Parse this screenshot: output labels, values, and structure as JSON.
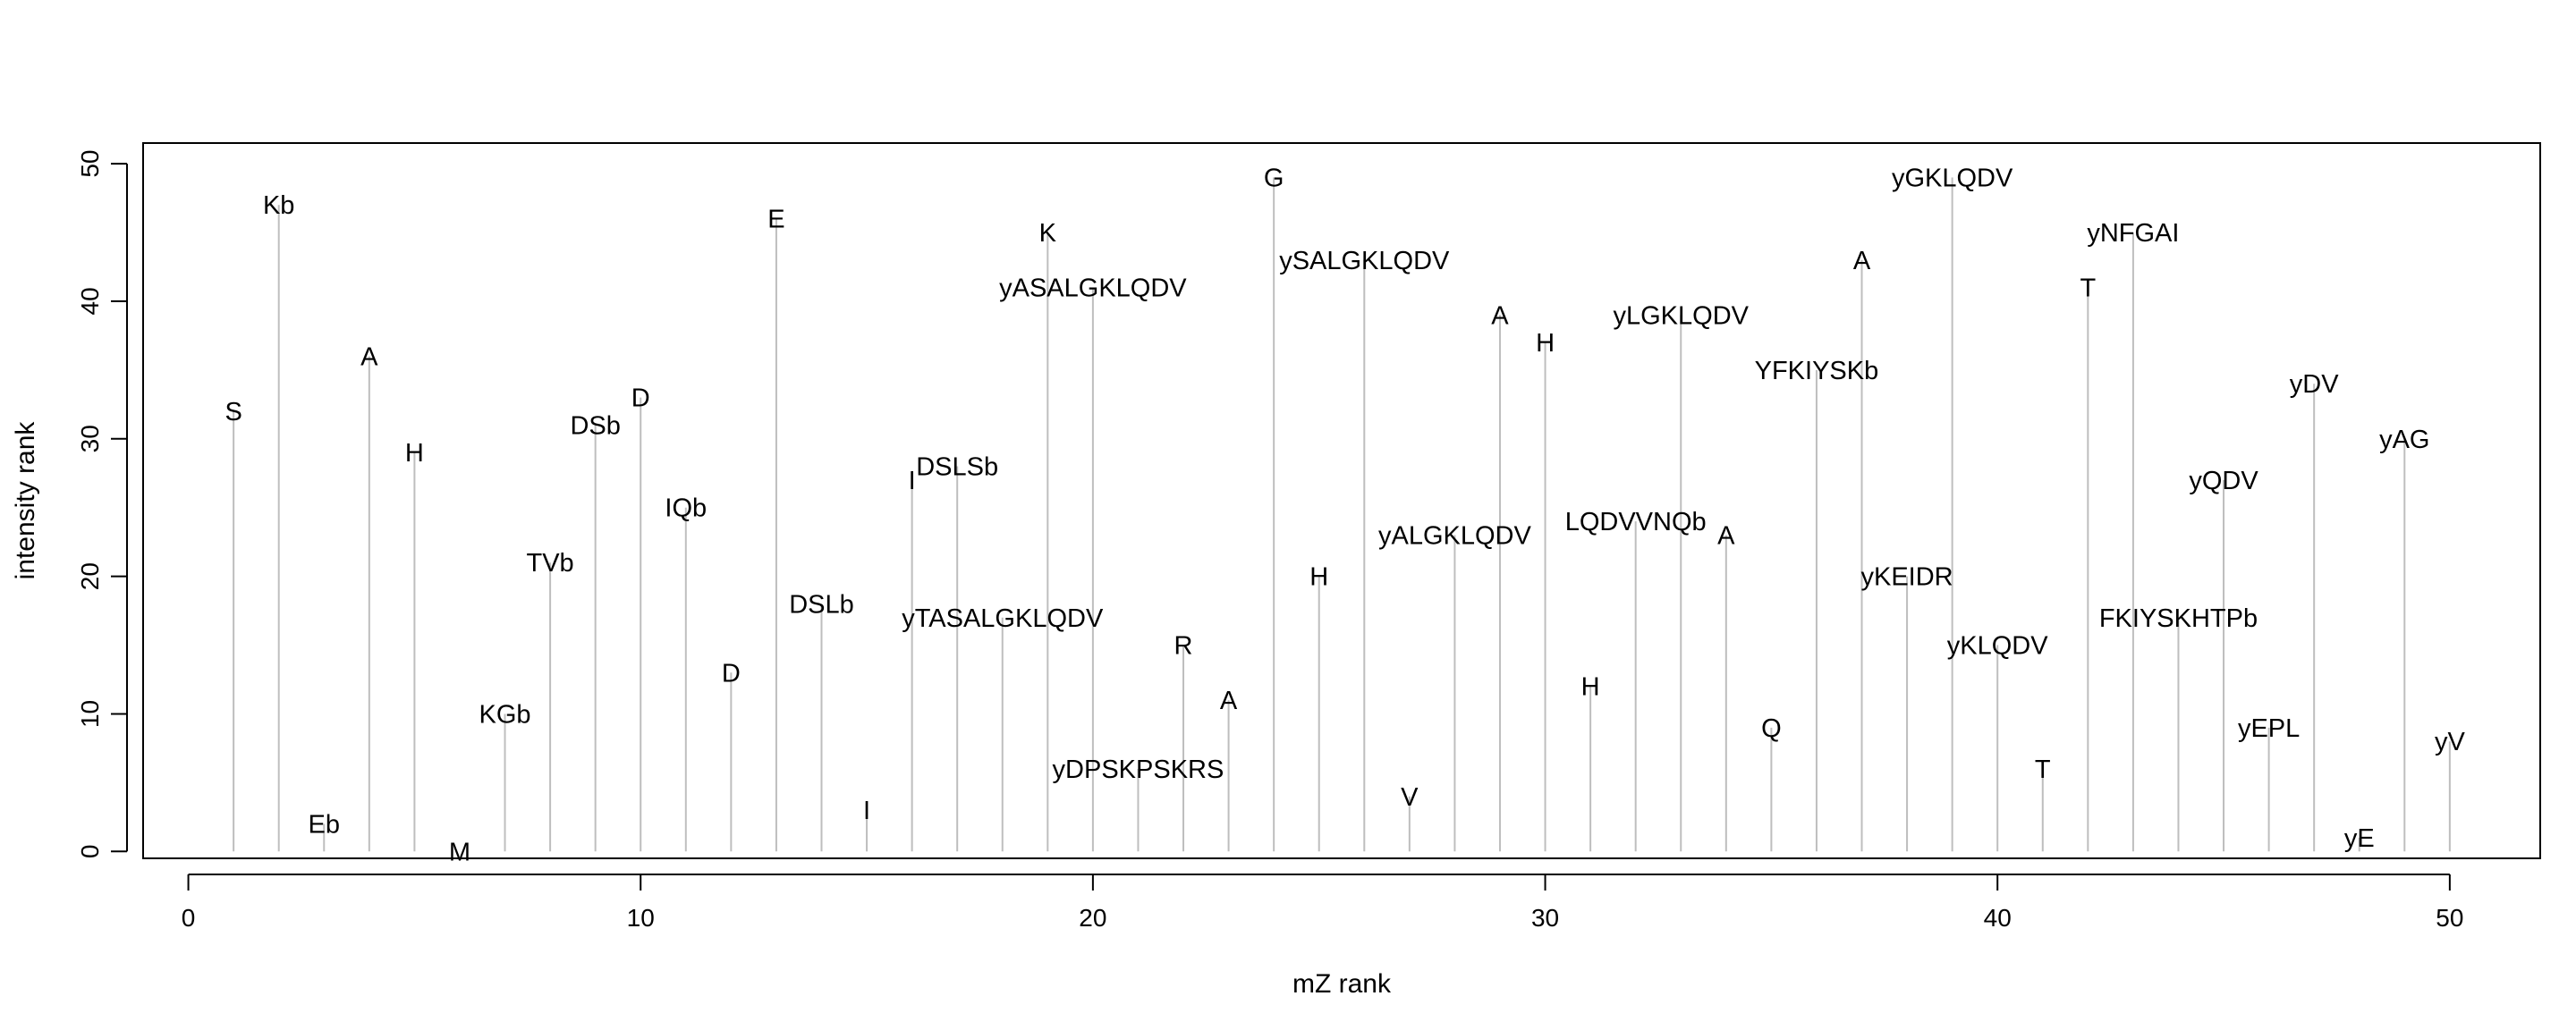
{
  "chart_data": {
    "type": "bar",
    "style": "vertical lines with text labels at tips",
    "title": "",
    "xlabel": "mZ rank",
    "ylabel": "intensity rank",
    "xlim": [
      -1,
      52
    ],
    "ylim": [
      -0.5,
      51.5
    ],
    "x_ticks": [
      0,
      10,
      20,
      30,
      40,
      50
    ],
    "y_ticks": [
      0,
      10,
      20,
      30,
      40,
      50
    ],
    "grid": false,
    "line_color": "#bebebe",
    "points": [
      {
        "x": 1,
        "y": 32,
        "label": "S"
      },
      {
        "x": 2,
        "y": 47,
        "label": "Kb"
      },
      {
        "x": 3,
        "y": 2,
        "label": "Eb"
      },
      {
        "x": 4,
        "y": 36,
        "label": "A"
      },
      {
        "x": 5,
        "y": 29,
        "label": "H"
      },
      {
        "x": 6,
        "y": 0,
        "label": "M"
      },
      {
        "x": 7,
        "y": 10,
        "label": "KGb"
      },
      {
        "x": 8,
        "y": 21,
        "label": "TVb"
      },
      {
        "x": 9,
        "y": 31,
        "label": "DSb"
      },
      {
        "x": 10,
        "y": 33,
        "label": "D"
      },
      {
        "x": 11,
        "y": 25,
        "label": "IQb"
      },
      {
        "x": 12,
        "y": 13,
        "label": "D"
      },
      {
        "x": 13,
        "y": 46,
        "label": "E"
      },
      {
        "x": 14,
        "y": 18,
        "label": "DSLb"
      },
      {
        "x": 15,
        "y": 3,
        "label": "I"
      },
      {
        "x": 16,
        "y": 27,
        "label": "I"
      },
      {
        "x": 17,
        "y": 28,
        "label": "DSLSb"
      },
      {
        "x": 18,
        "y": 17,
        "label": "yTASALGKLQDV"
      },
      {
        "x": 19,
        "y": 45,
        "label": "K"
      },
      {
        "x": 20,
        "y": 41,
        "label": "yASALGKLQDV"
      },
      {
        "x": 21,
        "y": 6,
        "label": "yDPSKPSKRS"
      },
      {
        "x": 22,
        "y": 15,
        "label": "R"
      },
      {
        "x": 23,
        "y": 11,
        "label": "A"
      },
      {
        "x": 24,
        "y": 49,
        "label": "G"
      },
      {
        "x": 25,
        "y": 20,
        "label": "H"
      },
      {
        "x": 26,
        "y": 43,
        "label": "ySALGKLQDV"
      },
      {
        "x": 27,
        "y": 4,
        "label": "V"
      },
      {
        "x": 28,
        "y": 23,
        "label": "yALGKLQDV"
      },
      {
        "x": 29,
        "y": 39,
        "label": "A"
      },
      {
        "x": 30,
        "y": 37,
        "label": "H"
      },
      {
        "x": 31,
        "y": 12,
        "label": "H"
      },
      {
        "x": 32,
        "y": 24,
        "label": "LQDVVNQb"
      },
      {
        "x": 33,
        "y": 39,
        "label": "yLGKLQDV"
      },
      {
        "x": 34,
        "y": 23,
        "label": "A"
      },
      {
        "x": 35,
        "y": 9,
        "label": "Q"
      },
      {
        "x": 36,
        "y": 35,
        "label": "YFKIYSKb"
      },
      {
        "x": 37,
        "y": 43,
        "label": "A"
      },
      {
        "x": 38,
        "y": 20,
        "label": "yKEIDR"
      },
      {
        "x": 39,
        "y": 49,
        "label": "yGKLQDV"
      },
      {
        "x": 40,
        "y": 15,
        "label": "yKLQDV"
      },
      {
        "x": 41,
        "y": 6,
        "label": "T"
      },
      {
        "x": 42,
        "y": 41,
        "label": "T"
      },
      {
        "x": 43,
        "y": 45,
        "label": "yNFGAI"
      },
      {
        "x": 44,
        "y": 17,
        "label": "FKIYSKHTPb"
      },
      {
        "x": 45,
        "y": 27,
        "label": "yQDV"
      },
      {
        "x": 46,
        "y": 9,
        "label": "yEPL"
      },
      {
        "x": 47,
        "y": 34,
        "label": "yDV"
      },
      {
        "x": 48,
        "y": 1,
        "label": "yE"
      },
      {
        "x": 49,
        "y": 30,
        "label": "yAG"
      },
      {
        "x": 50,
        "y": 8,
        "label": "yV"
      }
    ]
  }
}
